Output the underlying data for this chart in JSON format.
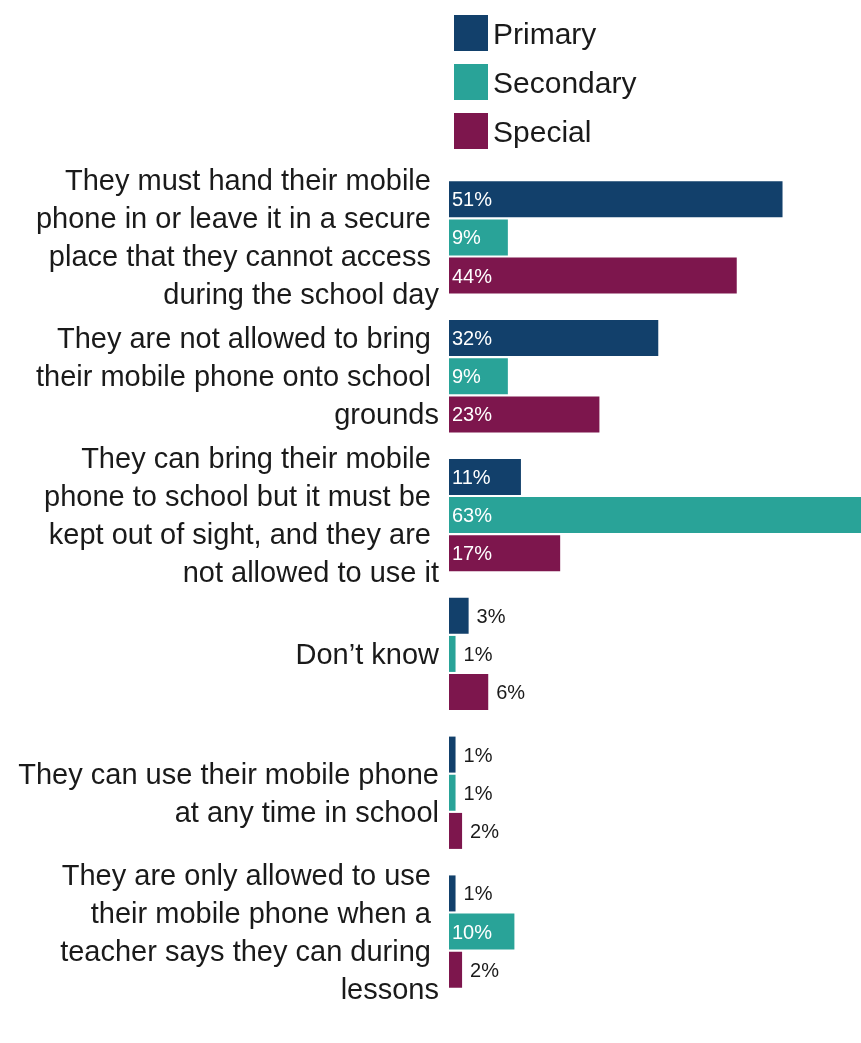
{
  "chart_data": {
    "type": "bar",
    "orientation": "horizontal",
    "categories": [
      "They must hand their mobile phone in or leave it in a secure place that they cannot access during the school day",
      "They are not allowed to bring their mobile phone onto school grounds",
      "They can bring their mobile phone to school but it must be kept out of sight, and they are not allowed to use it",
      "Don’t know",
      "They can use their mobile phone at any time in school",
      "They are only allowed to use their mobile phone when a teacher says they can during lessons"
    ],
    "series": [
      {
        "name": "Primary",
        "color": "#12406b",
        "values": [
          51,
          32,
          11,
          3,
          1,
          1
        ],
        "value_labels": [
          "51%",
          "32%",
          "11%",
          "3%",
          "1%",
          "1%"
        ]
      },
      {
        "name": "Secondary",
        "color": "#29a398",
        "values": [
          9,
          9,
          63,
          1,
          1,
          10
        ],
        "value_labels": [
          "9%",
          "9%",
          "63%",
          "1%",
          "1%",
          "10%"
        ]
      },
      {
        "name": "Special",
        "color": "#7d164d",
        "values": [
          44,
          23,
          17,
          6,
          2,
          2
        ],
        "value_labels": [
          "44%",
          "23%",
          "17%",
          "6%",
          "2%",
          "2%"
        ]
      }
    ],
    "xlim": [
      0,
      63
    ],
    "tick_labels": "y",
    "legend": "top"
  }
}
